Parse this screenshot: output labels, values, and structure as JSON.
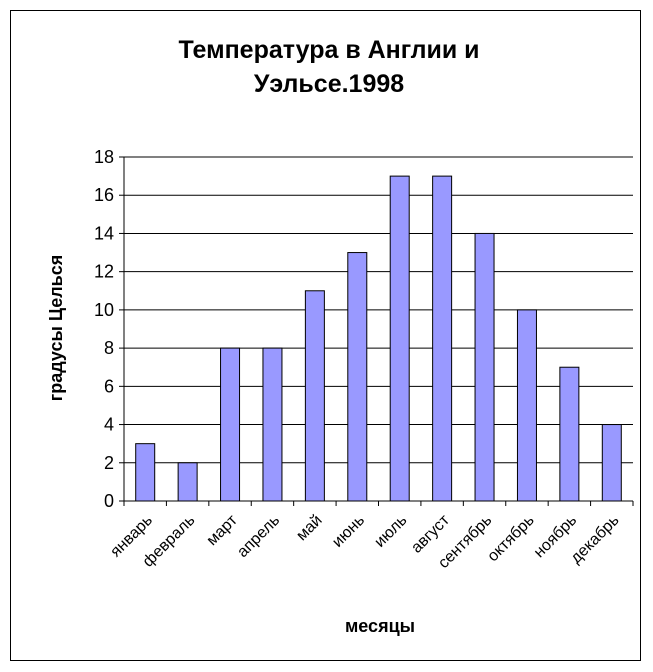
{
  "chart_data": {
    "type": "bar",
    "title_lines": [
      "Температура в Англии и",
      "Уэльсе.1998"
    ],
    "xlabel": "месяцы",
    "ylabel": "градусы Целься",
    "ylim": [
      0,
      18
    ],
    "ytick_step": 2,
    "grid": true,
    "legend": "none",
    "categories": [
      "январь",
      "февраль",
      "март",
      "апрель",
      "май",
      "июнь",
      "июль",
      "август",
      "сентябрь",
      "октябрь",
      "ноябрь",
      "декабрь"
    ],
    "values": [
      3,
      2,
      8,
      8,
      11,
      13,
      17,
      17,
      14,
      10,
      7,
      4
    ],
    "colors": {
      "bar_fill": "#9999ff",
      "bar_stroke": "#000000",
      "grid": "#000000",
      "axis": "#000000"
    }
  }
}
